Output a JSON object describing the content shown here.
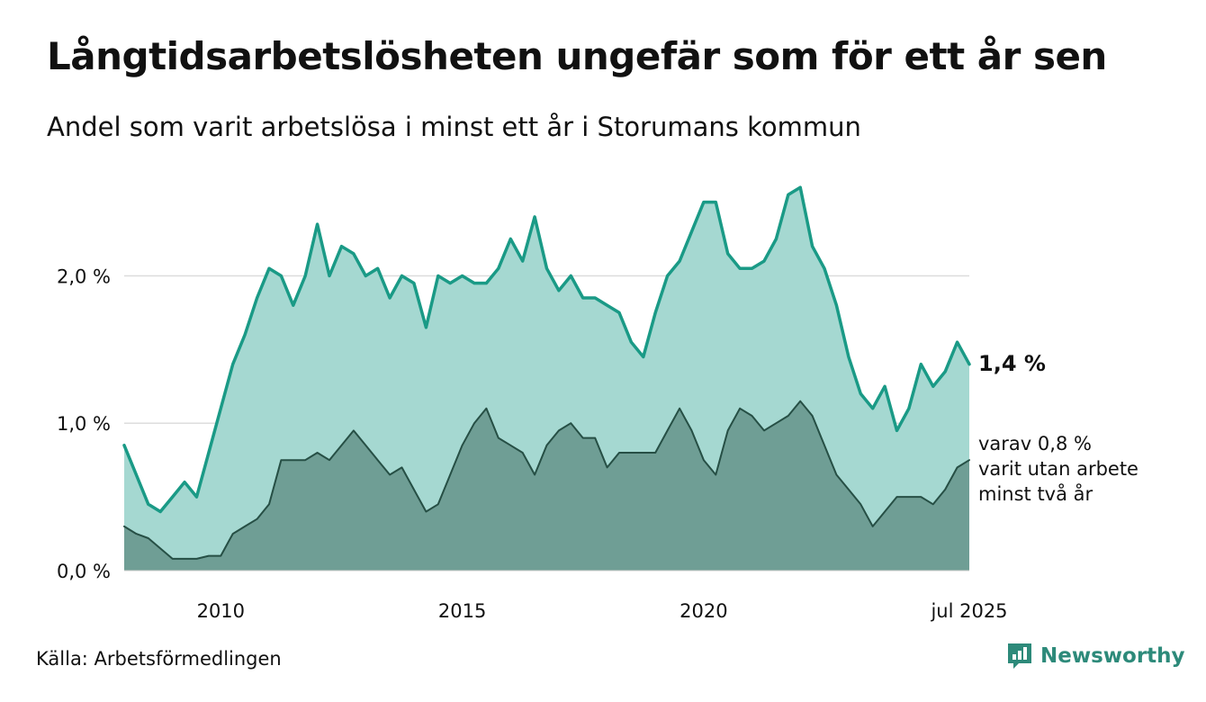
{
  "title": "Långtidsarbetslösheten ungefär som för ett år sen",
  "subtitle": "Andel som varit arbetslösa i minst ett år i Storumans kommun",
  "source": "Källa: Arbetsförmedlingen",
  "brand": {
    "name": "Newsworthy",
    "icon": "newsworthy-logo-icon",
    "color": "#2d8a7a"
  },
  "chart_data": {
    "type": "area",
    "x_tick_labels": [
      "2010",
      "2015",
      "2020",
      "jul 2025"
    ],
    "y_tick_labels": [
      "0,0 %",
      "1,0 %",
      "2,0 %"
    ],
    "y_ticks": [
      0,
      1.0,
      2.0
    ],
    "ylim": [
      0,
      2.65
    ],
    "xlim": [
      "2008-01",
      "2025-07"
    ],
    "grid": true,
    "colors": {
      "total_line": "#1a9a86",
      "total_fill": "#a5d8d1",
      "sub_line": "#264f45",
      "sub_fill": "#6f9e95",
      "grid": "#dddddd"
    },
    "annotations": {
      "last_total": "1,4 %",
      "last_sub_lines": [
        "varav 0,8 %",
        "varit utan arbete",
        "minst två år"
      ]
    },
    "x": [
      "2008-01",
      "2008-04",
      "2008-07",
      "2008-10",
      "2009-01",
      "2009-04",
      "2009-07",
      "2009-10",
      "2010-01",
      "2010-04",
      "2010-07",
      "2010-10",
      "2011-01",
      "2011-04",
      "2011-07",
      "2011-10",
      "2012-01",
      "2012-04",
      "2012-07",
      "2012-10",
      "2013-01",
      "2013-04",
      "2013-07",
      "2013-10",
      "2014-01",
      "2014-04",
      "2014-07",
      "2014-10",
      "2015-01",
      "2015-04",
      "2015-07",
      "2015-10",
      "2016-01",
      "2016-04",
      "2016-07",
      "2016-10",
      "2017-01",
      "2017-04",
      "2017-07",
      "2017-10",
      "2018-01",
      "2018-04",
      "2018-07",
      "2018-10",
      "2019-01",
      "2019-04",
      "2019-07",
      "2019-10",
      "2020-01",
      "2020-04",
      "2020-07",
      "2020-10",
      "2021-01",
      "2021-04",
      "2021-07",
      "2021-10",
      "2022-01",
      "2022-04",
      "2022-07",
      "2022-10",
      "2023-01",
      "2023-04",
      "2023-07",
      "2023-10",
      "2024-01",
      "2024-04",
      "2024-07",
      "2024-10",
      "2025-01",
      "2025-04",
      "2025-07"
    ],
    "series": [
      {
        "values": [
          0.85,
          0.65,
          0.45,
          0.4,
          0.5,
          0.6,
          0.5,
          0.8,
          1.1,
          1.4,
          1.6,
          1.85,
          2.05,
          2.0,
          1.8,
          2.0,
          2.35,
          2.0,
          2.2,
          2.15,
          2.0,
          2.05,
          1.85,
          2.0,
          1.95,
          1.65,
          2.0,
          1.95,
          2.0,
          1.95,
          1.95,
          2.05,
          2.25,
          2.1,
          2.4,
          2.05,
          1.9,
          2.0,
          1.85,
          1.85,
          1.8,
          1.75,
          1.55,
          1.45,
          1.75,
          2.0,
          2.1,
          2.3,
          2.5,
          2.5,
          2.15,
          2.05,
          2.05,
          2.1,
          2.25,
          2.55,
          2.6,
          2.2,
          2.05,
          1.8,
          1.45,
          1.2,
          1.1,
          1.25,
          0.95,
          1.1,
          1.4,
          1.25,
          1.35,
          1.55,
          1.4
        ]
      },
      {
        "values": [
          0.3,
          0.25,
          0.22,
          0.15,
          0.08,
          0.08,
          0.08,
          0.1,
          0.1,
          0.25,
          0.3,
          0.35,
          0.45,
          0.75,
          0.75,
          0.75,
          0.8,
          0.75,
          0.85,
          0.95,
          0.85,
          0.75,
          0.65,
          0.7,
          0.55,
          0.4,
          0.45,
          0.65,
          0.85,
          1.0,
          1.1,
          0.9,
          0.85,
          0.8,
          0.65,
          0.85,
          0.95,
          1.0,
          0.9,
          0.9,
          0.7,
          0.8,
          0.8,
          0.8,
          0.8,
          0.95,
          1.1,
          0.95,
          0.75,
          0.65,
          0.95,
          1.1,
          1.05,
          0.95,
          1.0,
          1.05,
          1.15,
          1.05,
          0.85,
          0.65,
          0.55,
          0.45,
          0.3,
          0.4,
          0.5,
          0.5,
          0.5,
          0.45,
          0.55,
          0.7,
          0.75
        ]
      }
    ]
  }
}
